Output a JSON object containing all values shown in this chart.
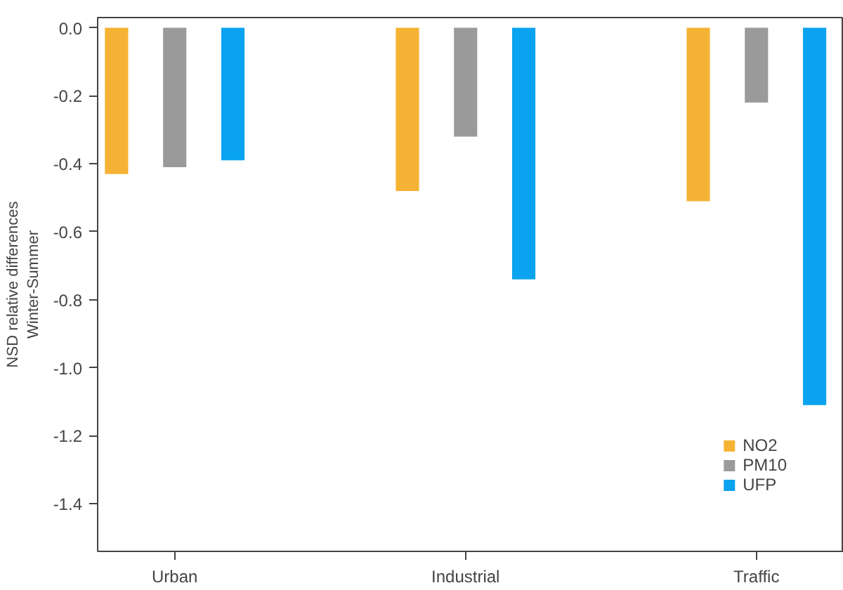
{
  "chart_data": {
    "type": "bar",
    "ylabel": "NSD relative differences\nWinter-Summer",
    "categories": [
      "Urban",
      "Industrial",
      "Traffic"
    ],
    "series": [
      {
        "name": "NO2",
        "color": "#f5b335",
        "values": [
          -0.43,
          -0.48,
          -0.51
        ]
      },
      {
        "name": "PM10",
        "color": "#9a9a9a",
        "values": [
          -0.41,
          -0.32,
          -0.22
        ]
      },
      {
        "name": "UFP",
        "color": "#0aa3ef",
        "values": [
          -0.39,
          -0.74,
          -1.11
        ]
      }
    ],
    "ylim": [
      -1.54,
      0.03
    ],
    "yticks": [
      {
        "value": 0,
        "label": "0.0"
      },
      -0.2,
      -0.4,
      -0.6,
      -0.8,
      {
        "value": -1,
        "label": "-1.0"
      },
      -1.2,
      -1.4
    ],
    "grid": false,
    "legend": "bottom right"
  }
}
